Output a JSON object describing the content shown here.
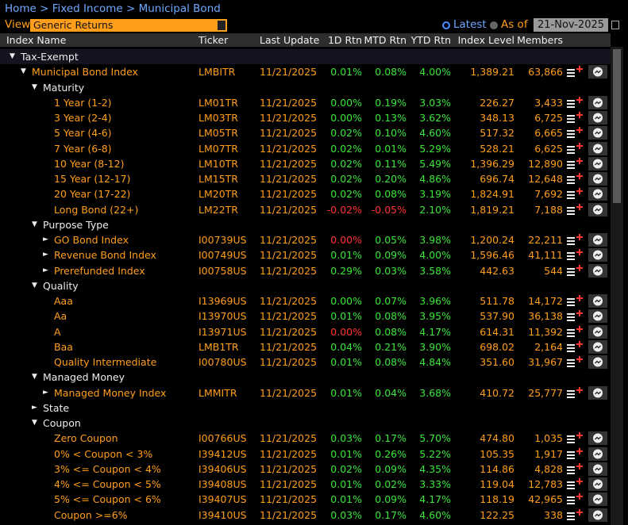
{
  "breadcrumb": "Home > Fixed Income > Municipal Bond",
  "view_label": "View",
  "view_value": "Generic Returns",
  "latest_label": "Latest",
  "as_of_label": "As of",
  "as_of_date": "21-Nov-2025",
  "columns": [
    "Index Name",
    "Ticker",
    "Last Update",
    "1D Rtn",
    "MTD Rtn",
    "YTD Rtn",
    "Index Level",
    "Members"
  ],
  "rows": [
    {
      "toggle": "▼",
      "label": "Tax-Exempt",
      "depth": 0
    },
    {
      "toggle": "▼",
      "label": "Municipal Bond Index",
      "depth": 1,
      "ticker": "LMBITR",
      "last_update": "11/21/2025",
      "rtn_1d": "0.01%",
      "rtn_mtd": "0.08%",
      "rtn_ytd": "4.00%",
      "index_level": "1,389.21",
      "members": "63,866"
    },
    {
      "toggle": "▼",
      "label": "Maturity",
      "depth": 2
    },
    {
      "label": "1 Year (1-2)",
      "depth": 3,
      "ticker": "LM01TR",
      "last_update": "11/21/2025",
      "rtn_1d": "0.00%",
      "rtn_mtd": "0.19%",
      "rtn_ytd": "3.03%",
      "index_level": "226.27",
      "members": "3,433"
    },
    {
      "label": "3 Year (2-4)",
      "depth": 3,
      "ticker": "LM03TR",
      "last_update": "11/21/2025",
      "rtn_1d": "0.00%",
      "rtn_mtd": "0.13%",
      "rtn_ytd": "3.62%",
      "index_level": "348.13",
      "members": "6,725"
    },
    {
      "label": "5 Year (4-6)",
      "depth": 3,
      "ticker": "LM05TR",
      "last_update": "11/21/2025",
      "rtn_1d": "0.02%",
      "rtn_mtd": "0.10%",
      "rtn_ytd": "4.60%",
      "index_level": "517.32",
      "members": "6,665"
    },
    {
      "label": "7 Year (6-8)",
      "depth": 3,
      "ticker": "LM07TR",
      "last_update": "11/21/2025",
      "rtn_1d": "0.02%",
      "rtn_mtd": "0.01%",
      "rtn_ytd": "5.29%",
      "index_level": "528.21",
      "members": "6,625"
    },
    {
      "label": "10 Year (8-12)",
      "depth": 3,
      "ticker": "LM10TR",
      "last_update": "11/21/2025",
      "rtn_1d": "0.02%",
      "rtn_mtd": "0.11%",
      "rtn_ytd": "5.49%",
      "index_level": "1,396.29",
      "members": "12,890"
    },
    {
      "label": "15 Year (12-17)",
      "depth": 3,
      "ticker": "LM15TR",
      "last_update": "11/21/2025",
      "rtn_1d": "0.02%",
      "rtn_mtd": "0.20%",
      "rtn_ytd": "4.86%",
      "index_level": "696.74",
      "members": "12,648"
    },
    {
      "label": "20 Year (17-22)",
      "depth": 3,
      "ticker": "LM20TR",
      "last_update": "11/21/2025",
      "rtn_1d": "0.02%",
      "rtn_mtd": "0.08%",
      "rtn_ytd": "3.19%",
      "index_level": "1,824.91",
      "members": "7,692"
    },
    {
      "label": "Long Bond (22+)",
      "depth": 3,
      "ticker": "LM22TR",
      "last_update": "11/21/2025",
      "rtn_1d": "-0.02%",
      "rtn_mtd": "-0.05%",
      "rtn_ytd": "2.10%",
      "index_level": "1,819.21",
      "members": "7,188",
      "red": [
        "rtn_1d",
        "rtn_mtd"
      ]
    },
    {
      "toggle": "▼",
      "label": "Purpose Type",
      "depth": 2
    },
    {
      "toggle": "►",
      "label": "GO Bond Index",
      "depth": 3,
      "ticker": "I00739US",
      "last_update": "11/21/2025",
      "rtn_1d": "0.00%",
      "rtn_mtd": "0.05%",
      "rtn_ytd": "3.98%",
      "index_level": "1,200.24",
      "members": "22,211",
      "red": [
        "rtn_1d"
      ]
    },
    {
      "toggle": "►",
      "label": "Revenue Bond Index",
      "depth": 3,
      "ticker": "I00749US",
      "last_update": "11/21/2025",
      "rtn_1d": "0.01%",
      "rtn_mtd": "0.09%",
      "rtn_ytd": "4.00%",
      "index_level": "1,596.46",
      "members": "41,111"
    },
    {
      "toggle": "►",
      "label": "Prerefunded Index",
      "depth": 3,
      "ticker": "I00758US",
      "last_update": "11/21/2025",
      "rtn_1d": "0.29%",
      "rtn_mtd": "0.03%",
      "rtn_ytd": "3.58%",
      "index_level": "442.63",
      "members": "544"
    },
    {
      "toggle": "▼",
      "label": "Quality",
      "depth": 2
    },
    {
      "label": "Aaa",
      "depth": 3,
      "ticker": "I13969US",
      "last_update": "11/21/2025",
      "rtn_1d": "0.00%",
      "rtn_mtd": "0.07%",
      "rtn_ytd": "3.96%",
      "index_level": "511.78",
      "members": "14,172"
    },
    {
      "label": "Aa",
      "depth": 3,
      "ticker": "I13970US",
      "last_update": "11/21/2025",
      "rtn_1d": "0.01%",
      "rtn_mtd": "0.08%",
      "rtn_ytd": "3.95%",
      "index_level": "537.90",
      "members": "36,138"
    },
    {
      "label": "A",
      "depth": 3,
      "ticker": "I13971US",
      "last_update": "11/21/2025",
      "rtn_1d": "0.00%",
      "rtn_mtd": "0.08%",
      "rtn_ytd": "4.17%",
      "index_level": "614.31",
      "members": "11,392",
      "red": [
        "rtn_1d"
      ]
    },
    {
      "label": "Baa",
      "depth": 3,
      "ticker": "LMB1TR",
      "last_update": "11/21/2025",
      "rtn_1d": "0.04%",
      "rtn_mtd": "0.21%",
      "rtn_ytd": "3.90%",
      "index_level": "698.02",
      "members": "2,164"
    },
    {
      "label": "Quality Intermediate",
      "depth": 3,
      "ticker": "I00780US",
      "last_update": "11/21/2025",
      "rtn_1d": "0.01%",
      "rtn_mtd": "0.08%",
      "rtn_ytd": "4.84%",
      "index_level": "351.60",
      "members": "31,967"
    },
    {
      "toggle": "▼",
      "label": "Managed Money",
      "depth": 2
    },
    {
      "toggle": "►",
      "label": "Managed Money Index",
      "depth": 3,
      "ticker": "LMMITR",
      "last_update": "11/21/2025",
      "rtn_1d": "0.01%",
      "rtn_mtd": "0.04%",
      "rtn_ytd": "3.68%",
      "index_level": "410.72",
      "members": "25,777"
    },
    {
      "toggle": "►",
      "label": "State",
      "depth": 2
    },
    {
      "toggle": "▼",
      "label": "Coupon",
      "depth": 2
    },
    {
      "label": "Zero Coupon",
      "depth": 3,
      "ticker": "I00766US",
      "last_update": "11/21/2025",
      "rtn_1d": "0.03%",
      "rtn_mtd": "0.17%",
      "rtn_ytd": "5.70%",
      "index_level": "474.80",
      "members": "1,035"
    },
    {
      "label": "0% < Coupon < 3%",
      "depth": 3,
      "ticker": "I39412US",
      "last_update": "11/21/2025",
      "rtn_1d": "0.01%",
      "rtn_mtd": "0.26%",
      "rtn_ytd": "5.22%",
      "index_level": "105.35",
      "members": "1,917"
    },
    {
      "label": "3% <= Coupon < 4%",
      "depth": 3,
      "ticker": "I39406US",
      "last_update": "11/21/2025",
      "rtn_1d": "0.02%",
      "rtn_mtd": "0.09%",
      "rtn_ytd": "4.35%",
      "index_level": "114.86",
      "members": "4,828"
    },
    {
      "label": "4% <= Coupon < 5%",
      "depth": 3,
      "ticker": "I39408US",
      "last_update": "11/21/2025",
      "rtn_1d": "0.01%",
      "rtn_mtd": "0.02%",
      "rtn_ytd": "3.33%",
      "index_level": "119.04",
      "members": "12,783"
    },
    {
      "label": "5% <= Coupon < 6%",
      "depth": 3,
      "ticker": "I39407US",
      "last_update": "11/21/2025",
      "rtn_1d": "0.01%",
      "rtn_mtd": "0.09%",
      "rtn_ytd": "4.17%",
      "index_level": "118.19",
      "members": "42,965"
    },
    {
      "label": "Coupon >=6%",
      "depth": 3,
      "ticker": "I39410US",
      "last_update": "11/21/2025",
      "rtn_1d": "0.03%",
      "rtn_mtd": "0.17%",
      "rtn_ytd": "4.60%",
      "index_level": "122.25",
      "members": "338"
    }
  ]
}
